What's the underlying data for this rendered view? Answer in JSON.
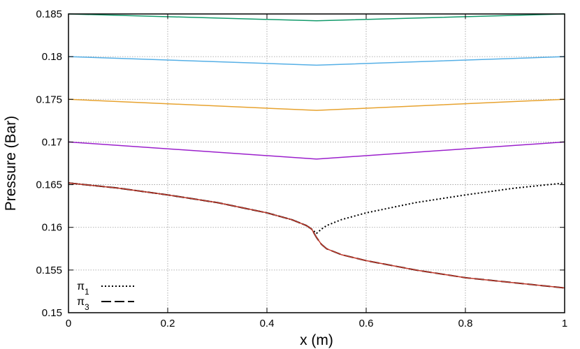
{
  "chart_data": {
    "type": "line",
    "title": "",
    "xlabel": "x (m)",
    "ylabel": "Pressure (Bar)",
    "xlim": [
      0,
      1
    ],
    "ylim": [
      0.15,
      0.185
    ],
    "x_ticks": [
      "0",
      "0.2",
      "0.4",
      "0.6",
      "0.8",
      "1"
    ],
    "y_ticks": [
      "0.15",
      "0.155",
      "0.16",
      "0.165",
      "0.17",
      "0.175",
      "0.18",
      "0.185"
    ],
    "grid": true,
    "legend_position": "bottom-left",
    "series": [
      {
        "color": "#119a6a",
        "style": "solid",
        "x": [
          0,
          0.5,
          1
        ],
        "y": [
          0.185,
          0.1842,
          0.185
        ]
      },
      {
        "color": "#55afe6",
        "style": "solid",
        "x": [
          0,
          0.5,
          1
        ],
        "y": [
          0.18,
          0.179,
          0.18
        ]
      },
      {
        "color": "#e7a22e",
        "style": "solid",
        "x": [
          0,
          0.5,
          1
        ],
        "y": [
          0.175,
          0.1737,
          0.175
        ]
      },
      {
        "color": "#9b1fcc",
        "style": "solid",
        "x": [
          0,
          0.5,
          1
        ],
        "y": [
          0.17,
          0.168,
          0.17
        ]
      },
      {
        "name": "π1",
        "color": "#000000",
        "style": "dotted",
        "x": [
          0,
          0.1,
          0.2,
          0.3,
          0.4,
          0.45,
          0.48,
          0.49,
          0.5,
          0.51,
          0.52,
          0.55,
          0.6,
          0.7,
          0.8,
          0.9,
          1.0
        ],
        "y": [
          0.1652,
          0.1646,
          0.1638,
          0.1629,
          0.1617,
          0.1609,
          0.1602,
          0.1598,
          0.1593,
          0.1598,
          0.1602,
          0.1609,
          0.1617,
          0.1629,
          0.1638,
          0.1646,
          0.1652
        ]
      },
      {
        "name": "π3",
        "color": "#000000",
        "style": "dashed",
        "x": [
          0,
          0.1,
          0.2,
          0.3,
          0.4,
          0.45,
          0.48,
          0.49,
          0.5,
          0.51,
          0.52,
          0.55,
          0.6,
          0.7,
          0.8,
          0.9,
          1.0
        ],
        "y": [
          0.1652,
          0.1646,
          0.1638,
          0.1629,
          0.1617,
          0.1609,
          0.1602,
          0.1598,
          0.1588,
          0.158,
          0.1575,
          0.1568,
          0.1561,
          0.155,
          0.1541,
          0.1535,
          0.1529
        ]
      },
      {
        "color": "#c0392b",
        "style": "solid",
        "x": [
          0,
          0.1,
          0.2,
          0.3,
          0.4,
          0.45,
          0.48,
          0.49,
          0.5,
          0.51,
          0.52,
          0.55,
          0.6,
          0.7,
          0.8,
          0.9,
          1.0
        ],
        "y": [
          0.1652,
          0.1646,
          0.1638,
          0.1629,
          0.1617,
          0.1609,
          0.1602,
          0.1598,
          0.1588,
          0.158,
          0.1575,
          0.1568,
          0.1561,
          0.155,
          0.1541,
          0.1535,
          0.1529
        ]
      }
    ],
    "legend": [
      {
        "label": "π",
        "sub": "1",
        "style": "dotted"
      },
      {
        "label": "π",
        "sub": "3",
        "style": "dashed"
      }
    ]
  }
}
